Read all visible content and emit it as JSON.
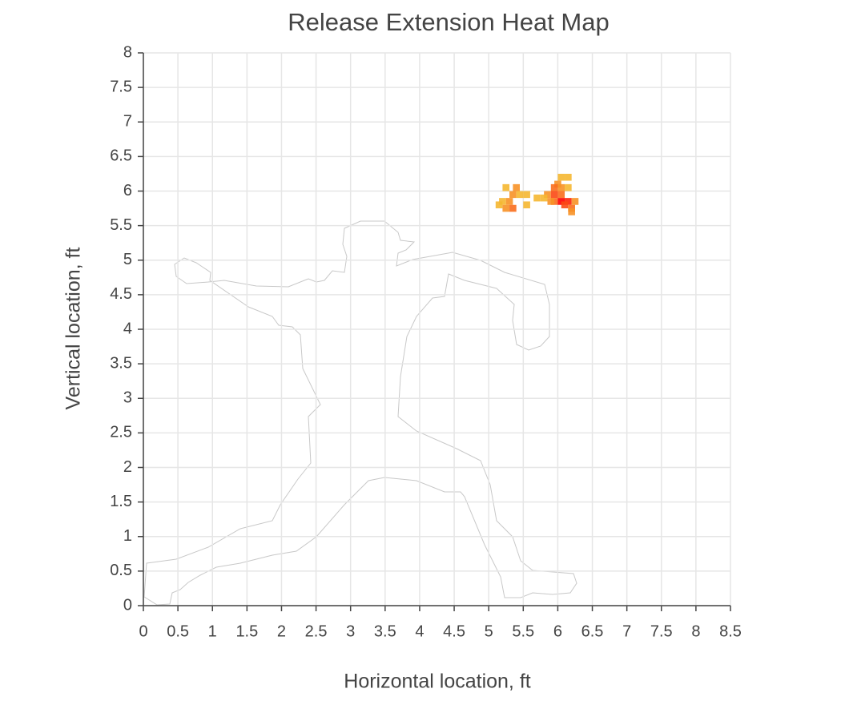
{
  "chart_data": {
    "type": "heatmap",
    "title": "Release Extension Heat Map",
    "x_label": "Horizontal location, ft",
    "y_label": "Vertical location, ft",
    "xlim": [
      0,
      8.5
    ],
    "ylim": [
      0,
      8
    ],
    "xticks": [
      0,
      0.5,
      1,
      1.5,
      2,
      2.5,
      3,
      3.5,
      4,
      4.5,
      5,
      5.5,
      6,
      6.5,
      7,
      7.5,
      8,
      8.5
    ],
    "yticks": [
      0,
      0.5,
      1,
      1.5,
      2,
      2.5,
      3,
      3.5,
      4,
      4.5,
      5,
      5.5,
      6,
      6.5,
      7,
      7.5,
      8
    ],
    "grid": true,
    "cell_size": 0.1,
    "colorscale": [
      "#f5b731",
      "#ff0000"
    ],
    "x": [
      5.25,
      5.4,
      5.35,
      5.45,
      5.2,
      5.3,
      5.55,
      5.55,
      5.25,
      5.35,
      5.15,
      6.05,
      6.15,
      6.0,
      5.95,
      6.05,
      6.15,
      5.85,
      5.95,
      6.05,
      5.8,
      5.7,
      5.95,
      6.05,
      6.15,
      6.25,
      6.1,
      6.2,
      6.2,
      5.9
    ],
    "y": [
      6.05,
      6.05,
      5.95,
      5.95,
      5.85,
      5.85,
      5.95,
      5.8,
      5.75,
      5.75,
      5.8,
      6.2,
      6.2,
      6.1,
      6.05,
      6.05,
      6.05,
      5.95,
      5.95,
      5.95,
      5.9,
      5.9,
      5.85,
      5.85,
      5.85,
      5.85,
      5.8,
      5.75,
      5.7,
      5.85
    ],
    "values": [
      1,
      2,
      2,
      1,
      1,
      2,
      1,
      1,
      2,
      3,
      1,
      1,
      1,
      2,
      3,
      2,
      1,
      2,
      4,
      3,
      1,
      1,
      3,
      6,
      5,
      2,
      4,
      3,
      2,
      2
    ]
  }
}
